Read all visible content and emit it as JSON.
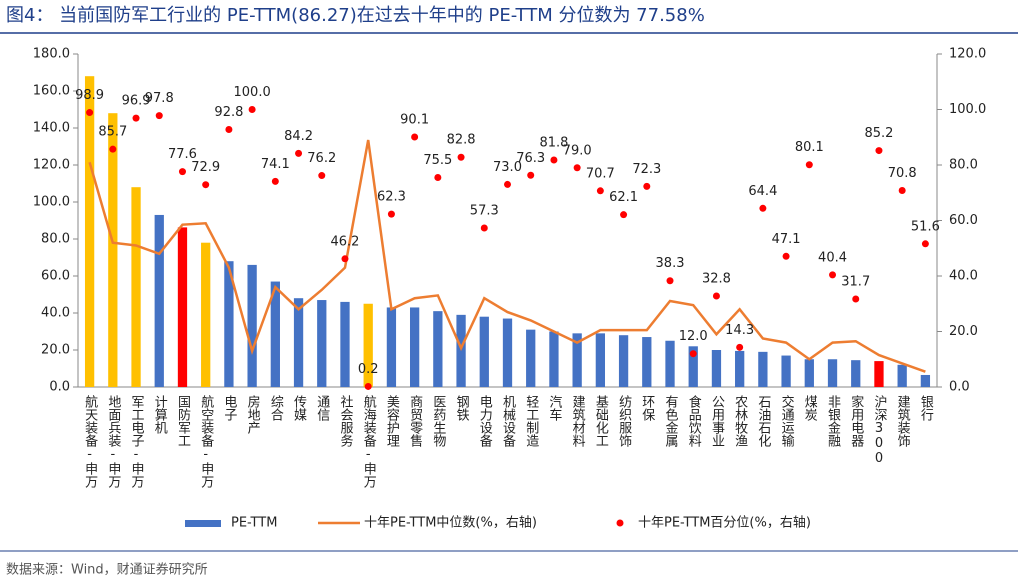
{
  "chart_data": {
    "type": "bar",
    "title": "图4： 当前国防军工行业的 PE-TTM(86.27)在过去十年中的 PE-TTM 分位数为 77.58%",
    "source": "数据来源：Wind，财通证券研究所",
    "categories": [
      "航天装备-申万",
      "地面兵装-申万",
      "军工电子-申万",
      "计算机",
      "国防军工",
      "航空装备-申万",
      "电子",
      "房地产",
      "综合",
      "传媒",
      "通信",
      "社会服务",
      "航海装备-申万",
      "美容护理",
      "商贸零售",
      "医药生物",
      "钢铁",
      "电力设备",
      "机械设备",
      "轻工制造",
      "汽车",
      "建筑材料",
      "基础化工",
      "纺织服饰",
      "环保",
      "有色金属",
      "食品饮料",
      "公用事业",
      "农林牧渔",
      "石油石化",
      "交通运输",
      "煤炭",
      "非银金融",
      "家用电器",
      "沪深300",
      "建筑装饰",
      "银行"
    ],
    "series": [
      {
        "name": "PE-TTM",
        "type": "bar",
        "color": "#4472c4",
        "colors": [
          "#ffc000",
          "#ffc000",
          "#ffc000",
          "#4472c4",
          "#ff0000",
          "#ffc000",
          "#4472c4",
          "#4472c4",
          "#4472c4",
          "#4472c4",
          "#4472c4",
          "#4472c4",
          "#ffc000",
          "#4472c4",
          "#4472c4",
          "#4472c4",
          "#4472c4",
          "#4472c4",
          "#4472c4",
          "#4472c4",
          "#4472c4",
          "#4472c4",
          "#4472c4",
          "#4472c4",
          "#4472c4",
          "#4472c4",
          "#4472c4",
          "#4472c4",
          "#4472c4",
          "#4472c4",
          "#4472c4",
          "#4472c4",
          "#4472c4",
          "#4472c4",
          "#ff0000",
          "#4472c4",
          "#4472c4"
        ],
        "values": [
          168,
          148,
          108,
          93,
          86.27,
          78,
          68,
          66,
          57,
          48,
          47,
          46,
          45,
          43,
          43,
          41,
          39,
          38,
          37,
          31,
          30,
          29,
          29,
          28,
          27,
          25,
          22,
          20,
          19.5,
          19,
          17,
          15,
          15,
          14.5,
          14,
          12,
          6.5
        ]
      },
      {
        "name": "十年PE-TTM中位数(%，右轴)",
        "type": "line",
        "color": "#ed7d31",
        "axis": "y2",
        "values": [
          81,
          52,
          51,
          48,
          58.5,
          59,
          43,
          13,
          36,
          28,
          35,
          43,
          89,
          28,
          32,
          33,
          14,
          32,
          27,
          24,
          20,
          16,
          20.5,
          20.5,
          20.5,
          31,
          29.5,
          19,
          28,
          17.5,
          16,
          10,
          16,
          16.5,
          11.5,
          8.5,
          5.5
        ]
      },
      {
        "name": "十年PE-TTM百分位(%，右轴)",
        "type": "scatter",
        "color": "#ff0000",
        "axis": "y2",
        "values": [
          98.9,
          85.7,
          96.9,
          97.8,
          77.6,
          72.9,
          92.8,
          100,
          74.1,
          84.2,
          76.2,
          46.2,
          0.2,
          62.3,
          90.1,
          75.5,
          82.8,
          57.3,
          73.0,
          76.3,
          81.8,
          79.0,
          70.7,
          62.1,
          72.3,
          38.3,
          12.0,
          32.8,
          14.3,
          64.4,
          47.1,
          80.1,
          40.4,
          31.7,
          85.2,
          70.8,
          51.6
        ],
        "value_labels": [
          "98.9",
          "85.7",
          "96.9",
          "97.8",
          "77.6",
          "72.9",
          "92.8",
          "100.0",
          "74.1",
          "84.2",
          "76.2",
          "46.2",
          "0.2",
          "62.3",
          "90.1",
          "75.5",
          "82.8",
          "57.3",
          "73.0",
          "76.3",
          "81.8",
          "79.0",
          "70.7",
          "62.1",
          "72.3",
          "38.3",
          "12.0",
          "32.8",
          "14.3",
          "64.4",
          "47.1",
          "80.1",
          "40.4",
          "31.7",
          "85.2",
          "70.8",
          "51.6"
        ]
      }
    ],
    "ylim": [
      0,
      180
    ],
    "yticks": [
      {
        "value": 0,
        "label": "0.0"
      },
      {
        "value": 20,
        "label": "20.0"
      },
      {
        "value": 40,
        "label": "40.0"
      },
      {
        "value": 60,
        "label": "60.0"
      },
      {
        "value": 80,
        "label": "80.0"
      },
      {
        "value": 100,
        "label": "100.0"
      },
      {
        "value": 120,
        "label": "120.0"
      },
      {
        "value": 140,
        "label": "140.0"
      },
      {
        "value": 160,
        "label": "160.0"
      },
      {
        "value": 180,
        "label": "180.0"
      }
    ],
    "y2lim": [
      0,
      120
    ],
    "y2ticks": [
      {
        "value": 0,
        "label": "0.0"
      },
      {
        "value": 20,
        "label": "20.0"
      },
      {
        "value": 40,
        "label": "40.0"
      },
      {
        "value": 60,
        "label": "60.0"
      },
      {
        "value": 80,
        "label": "80.0"
      },
      {
        "value": 100,
        "label": "100.0"
      },
      {
        "value": 120,
        "label": "120.0"
      }
    ],
    "grid": false
  }
}
